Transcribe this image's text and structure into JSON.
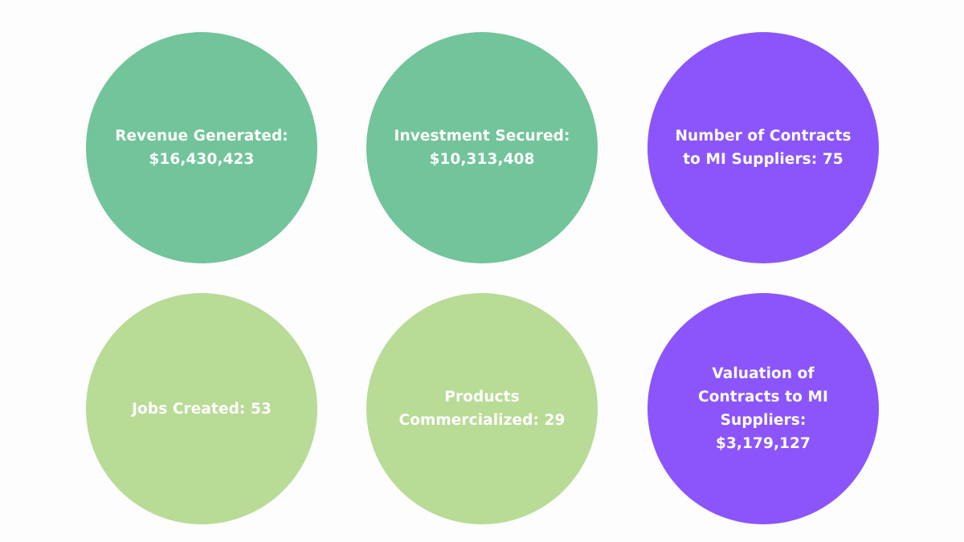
{
  "stats": [
    {
      "lines": [
        "Revenue Generated:",
        "$16,430,423"
      ],
      "color": "#72c49a"
    },
    {
      "lines": [
        "Investment Secured:",
        "$10,313,408"
      ],
      "color": "#72c49a"
    },
    {
      "lines": [
        "Number of Contracts",
        "to MI Suppliers: 75"
      ],
      "color": "#8b55fb"
    },
    {
      "lines": [
        "Jobs Created: 53"
      ],
      "color": "#b8db96"
    },
    {
      "lines": [
        "Products",
        "Commercialized: 29"
      ],
      "color": "#b8db96"
    },
    {
      "lines": [
        "Valuation of",
        "Contracts to MI",
        "Suppliers:",
        "$3,179,127"
      ],
      "color": "#8b55fb"
    }
  ]
}
